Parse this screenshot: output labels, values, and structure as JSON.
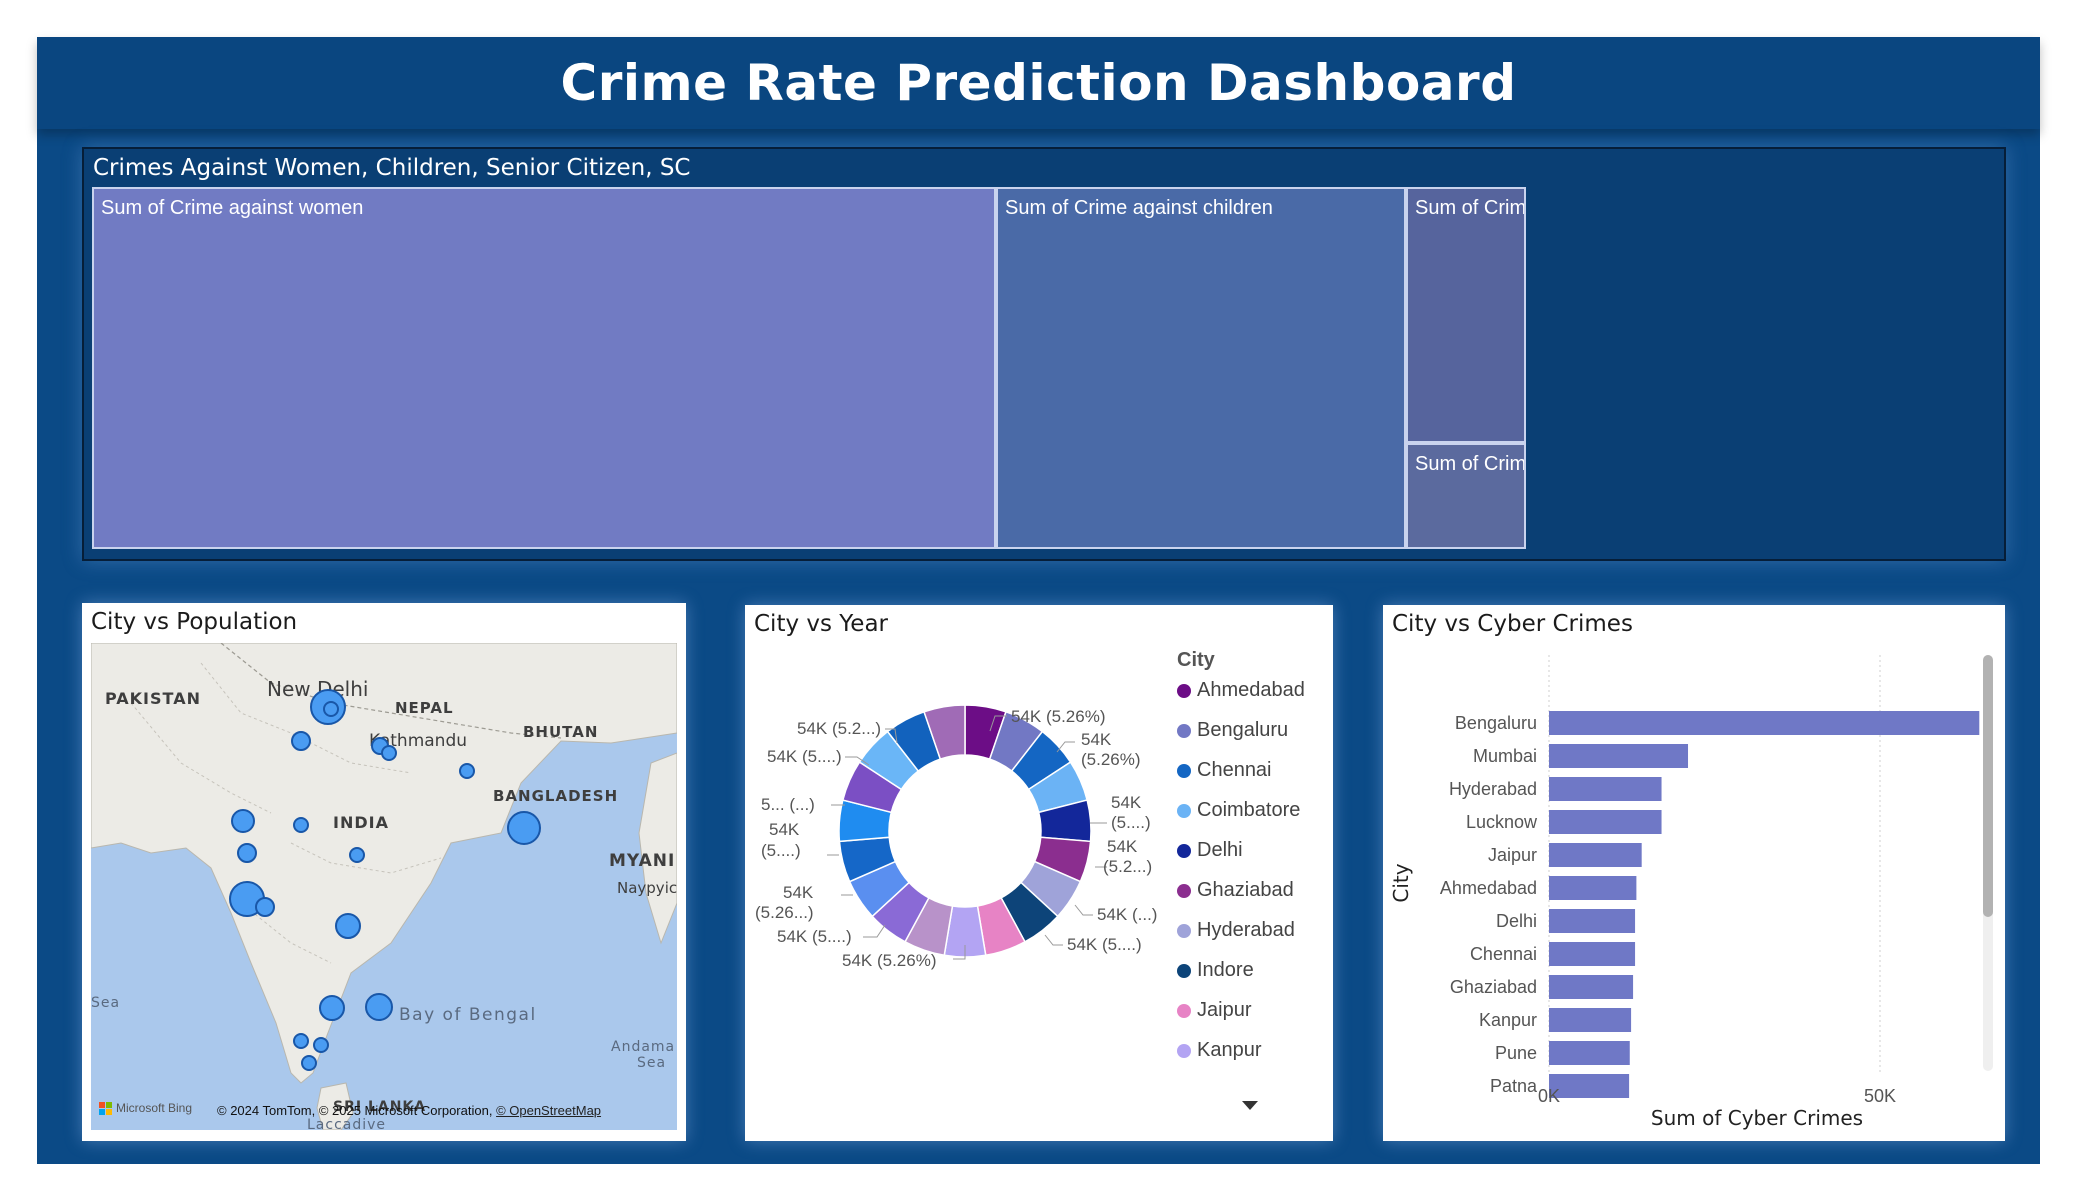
{
  "title": "Crime Rate Prediction Dashboard",
  "treemap": {
    "title": "Crimes Against Women, Children, Senior Citizen, SC",
    "tiles": [
      {
        "label": "Sum of Crime against women",
        "color": "#717bc3"
      },
      {
        "label": "Sum of Crime against children",
        "color": "#4a6aa7"
      },
      {
        "label": "Sum of Crime...",
        "color": "#56649d"
      },
      {
        "label": "Sum of Crime...",
        "color": "#5b6a9e"
      }
    ]
  },
  "map": {
    "title": "City vs Population",
    "labels": {
      "pakistan": "PAKISTAN",
      "new_delhi": "New Delhi",
      "nepal": "NEPAL",
      "kathmandu": "Kathmandu",
      "bhutan": "BHUTAN",
      "india": "INDIA",
      "bangladesh": "BANGLADESH",
      "myanmar": "MYANI",
      "naypyidaw": "Naypyic",
      "sea_left": "Sea",
      "bay_of_bengal": "Bay of Bengal",
      "andaman": "Andama",
      "andaman_sea": "Sea",
      "sri_lanka": "SRI LANKA",
      "laccadive": "Laccadive"
    },
    "bing": "Microsoft Bing",
    "attribution": "© 2024 TomTom, © 2025 Microsoft Corporation,",
    "osm": "© OpenStreetMap"
  },
  "donut": {
    "title": "City vs Year",
    "legend_title": "City",
    "legend": [
      {
        "name": "Ahmedabad",
        "color": "#6c0d86"
      },
      {
        "name": "Bengaluru",
        "color": "#7278c4"
      },
      {
        "name": "Chennai",
        "color": "#1466c3"
      },
      {
        "name": "Coimbatore",
        "color": "#6bb3f5"
      },
      {
        "name": "Delhi",
        "color": "#13279a"
      },
      {
        "name": "Ghaziabad",
        "color": "#8b2e8f"
      },
      {
        "name": "Hyderabad",
        "color": "#9fa3d9"
      },
      {
        "name": "Indore",
        "color": "#0d4479"
      },
      {
        "name": "Jaipur",
        "color": "#e783c5"
      },
      {
        "name": "Kanpur",
        "color": "#b3a4f3"
      }
    ],
    "data_labels": [
      "54K (5.26%)",
      "54K",
      "(5.26%)",
      "54K",
      "(5....)",
      "54K",
      "(5.2...)",
      "54K (...)",
      "54K (5....)",
      "54K (5.26%)",
      "54K (5....)",
      "54K",
      "(5.26...)",
      "54K",
      "(5....)",
      "5... (...)",
      "54K (5....)",
      "54K (5.2...)"
    ]
  },
  "chart_data": {
    "type": "bar",
    "title": "City vs Cyber Crimes",
    "xlabel": "Sum of Cyber Crimes",
    "ylabel": "City",
    "xlim": [
      0,
      85000
    ],
    "xticks": [
      "0K",
      "50K"
    ],
    "categories": [
      "Bengaluru",
      "Mumbai",
      "Hyderabad",
      "Lucknow",
      "Jaipur",
      "Ahmedabad",
      "Delhi",
      "Chennai",
      "Ghaziabad",
      "Kanpur",
      "Pune",
      "Patna"
    ],
    "values": [
      65000,
      21000,
      17000,
      17000,
      14000,
      13200,
      13000,
      13000,
      12700,
      12400,
      12200,
      12100
    ],
    "bar_color": "#6f78c6"
  }
}
